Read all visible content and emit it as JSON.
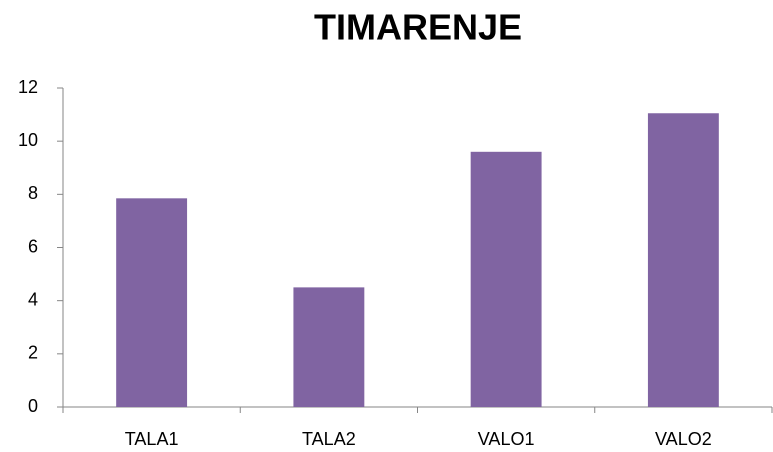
{
  "chart_data": {
    "type": "bar",
    "title": "TIMARENJE",
    "categories": [
      "TALA1",
      "TALA2",
      "VALO1",
      "VALO2"
    ],
    "values": [
      7.85,
      4.5,
      9.6,
      11.05
    ],
    "color": "#8064a2",
    "ylim": [
      0,
      12
    ],
    "yticks": [
      0,
      2,
      4,
      6,
      8,
      10,
      12
    ],
    "grid": false
  }
}
